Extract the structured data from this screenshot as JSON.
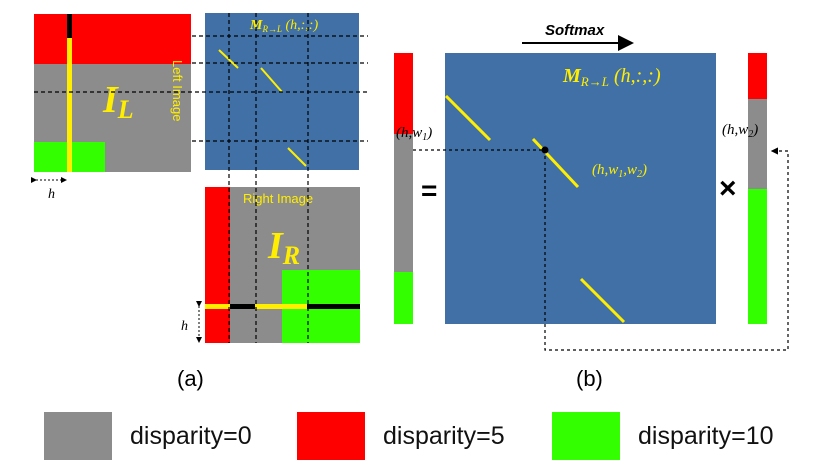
{
  "panel_a": {
    "caption": "(a)",
    "left_image_label": "Left Image",
    "right_image_label": "Right Image",
    "il_main": "I",
    "il_sub": "L",
    "ir_main": "I",
    "ir_sub": "R",
    "h_label_top": "h",
    "h_label_bottom": "h",
    "mini_matrix_main": "M",
    "mini_matrix_sub": "R→L",
    "mini_matrix_args": " (h,:,:)"
  },
  "panel_b": {
    "caption": "(b)",
    "softmax_label": "Softmax",
    "matrix_main": "M",
    "matrix_sub": "R→L",
    "matrix_args": " (h,:,:)",
    "left_vec_label": "(h,w",
    "left_vec_sub": "1",
    "right_vec_label": "(h,w",
    "right_vec_sub": "2",
    "point_label_a": "(h,w",
    "point_sub_1": "1",
    "point_label_b": ",w",
    "point_sub_2": "2",
    "equals": "=",
    "times": "×"
  },
  "legend": [
    {
      "label": "disparity=0",
      "color": "#8c8c8c"
    },
    {
      "label": "disparity=5",
      "color": "#ff0000"
    },
    {
      "label": "disparity=10",
      "color": "#33ff00"
    }
  ],
  "colors": {
    "gray": "#8c8c8c",
    "red": "#ff0000",
    "green": "#33ff00",
    "blue": "#4170a6",
    "yellow": "#ffee00"
  }
}
